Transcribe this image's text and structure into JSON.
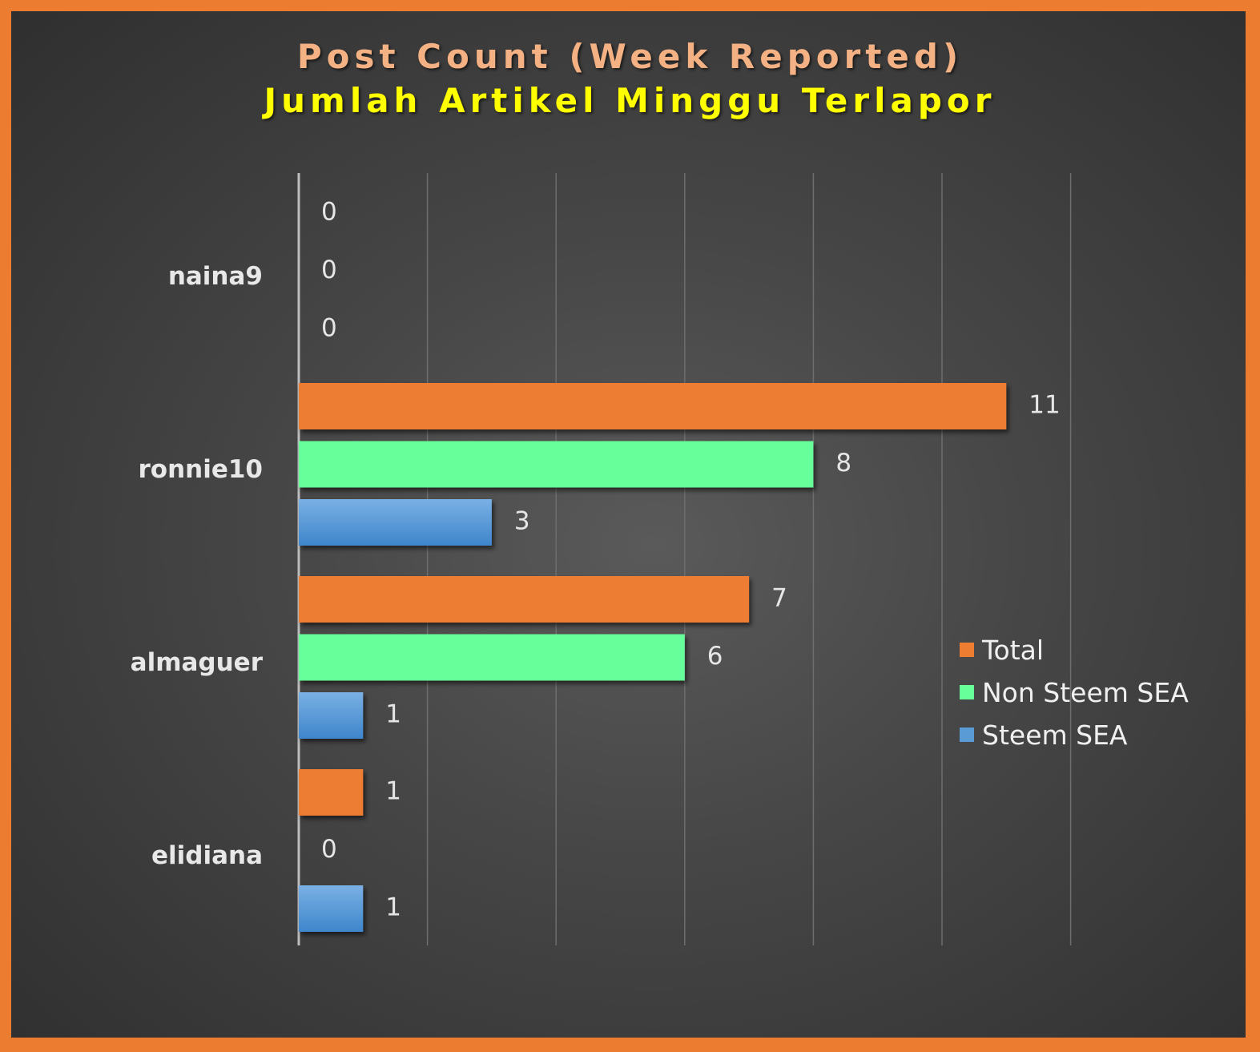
{
  "title": "Post Count (Week Reported)",
  "subtitle": "Jumlah Artikel Minggu Terlapor",
  "colors": {
    "frame": "#ec7c30",
    "Total": "#ed7d31",
    "Non Steem SEA": "#66ff99",
    "Steem SEA": "#5b9bd5"
  },
  "legend": [
    "Total",
    "Non Steem SEA",
    "Steem SEA"
  ],
  "chart_data": {
    "type": "bar",
    "orientation": "horizontal",
    "categories": [
      "naina9",
      "ronnie10",
      "almaguer",
      "elidiana"
    ],
    "series": [
      {
        "name": "Total",
        "values": [
          0,
          11,
          7,
          1
        ]
      },
      {
        "name": "Non Steem SEA",
        "values": [
          0,
          8,
          6,
          0
        ]
      },
      {
        "name": "Steem SEA",
        "values": [
          0,
          3,
          1,
          1
        ]
      }
    ],
    "xlim": [
      0,
      12
    ],
    "grid": true,
    "data_labels": true,
    "legend_position": "right"
  }
}
